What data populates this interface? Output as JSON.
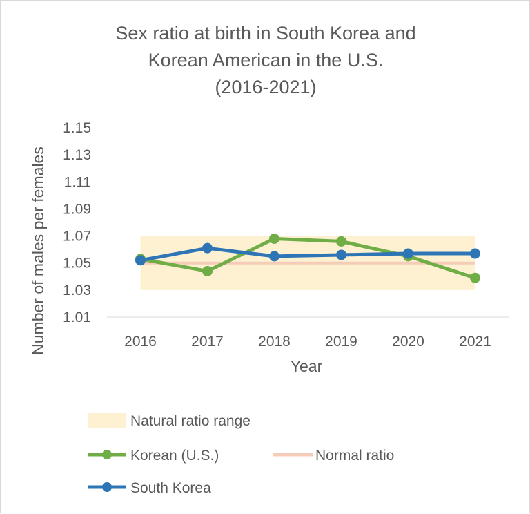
{
  "chart_data": {
    "type": "line",
    "title_lines": [
      "Sex ratio at birth in South Korea and",
      "Korean American in the U.S.",
      "(2016-2021)"
    ],
    "xlabel": "Year",
    "ylabel": "Number of males per females",
    "categories": [
      "2016",
      "2017",
      "2018",
      "2019",
      "2020",
      "2021"
    ],
    "ylim": [
      1.01,
      1.15
    ],
    "yticks": [
      "1.15",
      "1.13",
      "1.11",
      "1.09",
      "1.07",
      "1.05",
      "1.03",
      "1.01"
    ],
    "band": {
      "name": "Natural ratio range",
      "from": 1.03,
      "to": 1.07,
      "color": "#fdf1d2"
    },
    "reference": {
      "name": "Normal ratio",
      "value": 1.05,
      "color": "#f4ccb8"
    },
    "series": [
      {
        "name": "Korean (U.S.)",
        "color": "#70ad47",
        "values": [
          1.053,
          1.044,
          1.068,
          1.066,
          1.055,
          1.039
        ]
      },
      {
        "name": "South Korea",
        "color": "#2e75b6",
        "values": [
          1.052,
          1.061,
          1.055,
          1.056,
          1.057,
          1.057
        ]
      }
    ],
    "grid": false,
    "legend_position": "bottom"
  }
}
